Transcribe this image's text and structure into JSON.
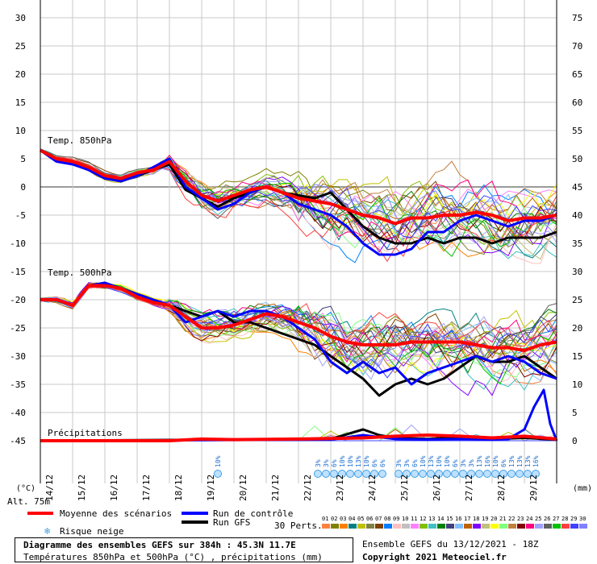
{
  "colors": {
    "mean": "#ff0000",
    "control": "#0000ff",
    "gfs": "#000000",
    "grid": "#b4b4b4",
    "members": [
      "#ff8040",
      "#808000",
      "#ff8000",
      "#008080",
      "#c0c000",
      "#808040",
      "#804000",
      "#0080ff",
      "#ffc0c0",
      "#c0c0c0",
      "#ff80ff",
      "#80c000",
      "#40c0c0",
      "#008000",
      "#404080",
      "#80c0ff",
      "#c06000",
      "#8000ff",
      "#c0c080",
      "#ffff00",
      "#80ff80",
      "#c08040",
      "#800000",
      "#ff0080",
      "#a0a0ff",
      "#606060",
      "#00c000",
      "#ff4040",
      "#4040ff",
      "#8080ff"
    ]
  },
  "chart_data": {
    "type": "line",
    "title": "Diagramme des ensembles GEFS sur 384h : 45.3N 11.7E",
    "subtitle": "Températures 850hPa et 500hPa (°C) , précipitations (mm)",
    "run_info": "Ensemble GEFS du 13/12/2021 - 18Z",
    "copyright": "Copyright 2021 Meteociel.fr",
    "left_axis": {
      "unit": "(°C)",
      "range": [
        -45,
        30
      ],
      "ticks": [
        30,
        25,
        20,
        15,
        10,
        5,
        0,
        -5,
        -10,
        -15,
        -20,
        -25,
        -30,
        -35,
        -40,
        -45
      ]
    },
    "right_axis": {
      "unit": "(mm)",
      "range": [
        0,
        75
      ],
      "ticks": [
        75,
        70,
        65,
        60,
        55,
        50,
        45,
        40,
        35,
        30,
        25,
        20,
        15,
        10,
        5,
        0
      ]
    },
    "altitude": "Alt. 75m",
    "dates": [
      "14/12",
      "15/12",
      "16/12",
      "17/12",
      "18/12",
      "19/12",
      "20/12",
      "21/12",
      "22/12",
      "23/12",
      "24/12",
      "25/12",
      "26/12",
      "27/12",
      "28/12",
      "29/12"
    ],
    "panel_labels": {
      "t850": "Temp. 850hPa",
      "t500": "Temp. 500hPa",
      "precip": "Précipitations"
    },
    "legend": {
      "mean": "Moyenne des scénarios",
      "control": "Run de contrôle",
      "gfs": "Run GFS",
      "snow": "Risque neige",
      "perts_label": "30 Perts.",
      "perts": [
        "01",
        "02",
        "03",
        "04",
        "05",
        "06",
        "07",
        "08",
        "09",
        "10",
        "11",
        "12",
        "13",
        "14",
        "15",
        "16",
        "17",
        "18",
        "19",
        "20",
        "21",
        "22",
        "23",
        "24",
        "25",
        "26",
        "27",
        "28",
        "29",
        "30"
      ]
    },
    "snow_risk": [
      {
        "day": 5.5,
        "pct": "10%"
      },
      {
        "day": 8.6,
        "pct": "3%"
      },
      {
        "day": 8.85,
        "pct": "3%"
      },
      {
        "day": 9.1,
        "pct": "6%"
      },
      {
        "day": 9.35,
        "pct": "10%"
      },
      {
        "day": 9.6,
        "pct": "10%"
      },
      {
        "day": 9.85,
        "pct": "13%"
      },
      {
        "day": 10.1,
        "pct": "10%"
      },
      {
        "day": 10.35,
        "pct": "6%"
      },
      {
        "day": 10.6,
        "pct": "6%"
      },
      {
        "day": 11.1,
        "pct": "3%"
      },
      {
        "day": 11.35,
        "pct": "3%"
      },
      {
        "day": 11.6,
        "pct": "6%"
      },
      {
        "day": 11.85,
        "pct": "10%"
      },
      {
        "day": 12.1,
        "pct": "13%"
      },
      {
        "day": 12.35,
        "pct": "10%"
      },
      {
        "day": 12.6,
        "pct": "10%"
      },
      {
        "day": 12.85,
        "pct": "6%"
      },
      {
        "day": 13.1,
        "pct": "3%"
      },
      {
        "day": 13.35,
        "pct": "3%"
      },
      {
        "day": 13.6,
        "pct": "13%"
      },
      {
        "day": 13.85,
        "pct": "16%"
      },
      {
        "day": 14.1,
        "pct": "10%"
      },
      {
        "day": 14.35,
        "pct": "6%"
      },
      {
        "day": 14.6,
        "pct": "13%"
      },
      {
        "day": 14.85,
        "pct": "13%"
      },
      {
        "day": 15.1,
        "pct": "13%"
      },
      {
        "day": 15.35,
        "pct": "16%"
      }
    ],
    "series": [
      {
        "name": "Moyenne des scénarios",
        "panel": "t850",
        "x": [
          0,
          0.5,
          1,
          1.5,
          2,
          2.5,
          3,
          3.5,
          4,
          4.5,
          5,
          5.5,
          6,
          6.5,
          7,
          7.5,
          8,
          8.5,
          9,
          9.5,
          10,
          10.5,
          11,
          11.5,
          12,
          12.5,
          13,
          13.5,
          14,
          14.5,
          15,
          15.5,
          16
        ],
        "values": [
          6.5,
          5,
          4.5,
          3.5,
          2,
          1.5,
          2.5,
          3,
          4.5,
          1,
          -1.5,
          -2.5,
          -1.5,
          -0.5,
          0,
          -1,
          -2,
          -2.5,
          -3,
          -4,
          -5,
          -5.5,
          -6.5,
          -5.5,
          -5.5,
          -5,
          -5,
          -4.5,
          -5,
          -6,
          -5.5,
          -5.5,
          -5
        ]
      },
      {
        "name": "Run de contrôle",
        "panel": "t850",
        "x": [
          0,
          0.5,
          1,
          1.5,
          2,
          2.5,
          3,
          3.5,
          4,
          4.5,
          5,
          5.5,
          6,
          6.5,
          7,
          7.5,
          8,
          8.5,
          9,
          9.5,
          10,
          10.5,
          11,
          11.5,
          12,
          12.5,
          13,
          13.5,
          14,
          14.5,
          15,
          15.5,
          16
        ],
        "values": [
          6.5,
          4.5,
          4,
          3,
          1.5,
          1,
          2,
          3.5,
          5,
          0,
          -2,
          -4,
          -3,
          -1,
          0,
          -1,
          -3,
          -4,
          -5,
          -7,
          -10,
          -12,
          -12,
          -11,
          -8,
          -8,
          -6,
          -5,
          -6,
          -7,
          -6,
          -6,
          -5
        ]
      },
      {
        "name": "Run GFS",
        "panel": "t850",
        "x": [
          0,
          0.5,
          1,
          1.5,
          2,
          2.5,
          3,
          3.5,
          4,
          4.5,
          5,
          5.5,
          6,
          6.5,
          7,
          7.5,
          8,
          8.5,
          9,
          9.5,
          10,
          10.5,
          11,
          11.5,
          12,
          12.5,
          13,
          13.5,
          14,
          14.5,
          15,
          15.5,
          16
        ],
        "values": [
          6.5,
          5,
          4.5,
          3,
          2,
          1,
          2,
          3,
          4,
          -0.5,
          -2,
          -3.5,
          -2,
          -1,
          0,
          -1,
          -1.5,
          -2,
          -1,
          -4,
          -7,
          -9,
          -10,
          -10,
          -9,
          -10,
          -9,
          -9,
          -10,
          -9,
          -9,
          -9,
          -8
        ]
      },
      {
        "name": "Moyenne des scénarios",
        "panel": "t500",
        "x": [
          0,
          0.5,
          1,
          1.5,
          2,
          2.5,
          3,
          3.5,
          4,
          4.5,
          5,
          5.5,
          6,
          6.5,
          7,
          7.5,
          8,
          8.5,
          9,
          9.5,
          10,
          10.5,
          11,
          11.5,
          12,
          12.5,
          13,
          13.5,
          14,
          14.5,
          15,
          15.5,
          16
        ],
        "values": [
          -20,
          -20,
          -21,
          -17.5,
          -17.5,
          -18,
          -19.5,
          -20.5,
          -21,
          -23,
          -25,
          -25,
          -24.5,
          -23.5,
          -22.5,
          -23,
          -24,
          -25,
          -26.5,
          -27.5,
          -28,
          -28,
          -28,
          -27.5,
          -27.5,
          -27.5,
          -27.5,
          -28,
          -28.5,
          -28.5,
          -29,
          -28,
          -27.5
        ]
      },
      {
        "name": "Run de contrôle",
        "panel": "t500",
        "x": [
          0,
          0.5,
          1,
          1.5,
          2,
          2.5,
          3,
          3.5,
          4,
          4.5,
          5,
          5.5,
          6,
          6.5,
          7,
          7.5,
          8,
          8.5,
          9,
          9.5,
          10,
          10.5,
          11,
          11.5,
          12,
          12.5,
          13,
          13.5,
          14,
          14.5,
          15,
          15.5,
          16
        ],
        "values": [
          -20,
          -20,
          -21,
          -17.5,
          -17,
          -18,
          -19,
          -20,
          -21,
          -24,
          -23,
          -22,
          -23,
          -22,
          -22,
          -23,
          -25,
          -27,
          -31,
          -33,
          -31,
          -33,
          -32,
          -35,
          -33,
          -32,
          -31,
          -30,
          -31,
          -30,
          -31,
          -33,
          -34
        ]
      },
      {
        "name": "Run GFS",
        "panel": "t500",
        "x": [
          0,
          0.5,
          1,
          1.5,
          2,
          2.5,
          3,
          3.5,
          4,
          4.5,
          5,
          5.5,
          6,
          6.5,
          7,
          7.5,
          8,
          8.5,
          9,
          9.5,
          10,
          10.5,
          11,
          11.5,
          12,
          12.5,
          13,
          13.5,
          14,
          14.5,
          15,
          15.5,
          16
        ],
        "values": [
          -20,
          -20,
          -21,
          -17.5,
          -17,
          -18,
          -19,
          -20,
          -21,
          -22,
          -23,
          -22,
          -24,
          -24,
          -25,
          -26,
          -27,
          -28,
          -30,
          -32,
          -34,
          -37,
          -35,
          -34,
          -35,
          -34,
          -32,
          -30,
          -31,
          -31,
          -30,
          -32,
          -34
        ]
      },
      {
        "name": "Moyenne des scénarios",
        "panel": "precip",
        "x": [
          0,
          2,
          4,
          5,
          6,
          8,
          10,
          11,
          12,
          13,
          14,
          15,
          16
        ],
        "values": [
          0,
          0,
          0,
          0.3,
          0.2,
          0.3,
          0.5,
          0.8,
          1,
          0.8,
          0.5,
          0.8,
          0.3
        ]
      },
      {
        "name": "Run de contrôle",
        "panel": "precip",
        "x": [
          0,
          9,
          10,
          11,
          12,
          13,
          14,
          14.5,
          15,
          15.3,
          15.6,
          15.8,
          16
        ],
        "values": [
          0,
          0.2,
          1,
          0.3,
          0.2,
          0.3,
          0.2,
          0.3,
          2,
          6,
          9,
          3,
          0
        ]
      },
      {
        "name": "Run GFS",
        "panel": "precip",
        "x": [
          0,
          9,
          10,
          10.5,
          11,
          12,
          13,
          14,
          15,
          16
        ],
        "values": [
          0,
          0.3,
          2,
          1,
          0.5,
          0.3,
          0.6,
          0.3,
          0.5,
          0.2
        ]
      }
    ]
  }
}
